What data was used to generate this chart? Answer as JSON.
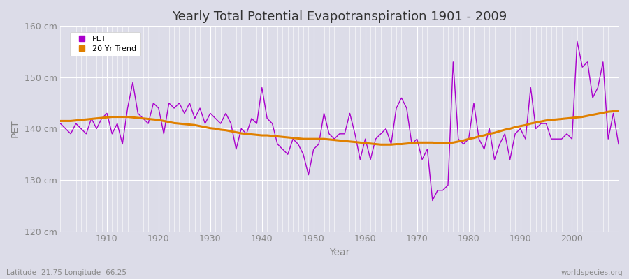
{
  "title": "Yearly Total Potential Evapotranspiration 1901 - 2009",
  "xlabel": "Year",
  "ylabel": "PET",
  "subtitle": "Latitude -21.75 Longitude -66.25",
  "watermark": "worldspecies.org",
  "ylim": [
    120,
    160
  ],
  "yticks": [
    120,
    130,
    140,
    150,
    160
  ],
  "ytick_labels": [
    "120 cm",
    "130 cm",
    "140 cm",
    "150 cm",
    "160 cm"
  ],
  "xlim": [
    1901,
    2009
  ],
  "xticks": [
    1910,
    1920,
    1930,
    1940,
    1950,
    1960,
    1970,
    1980,
    1990,
    2000
  ],
  "pet_color": "#AA00CC",
  "trend_color": "#E08000",
  "bg_color": "#DCDCE8",
  "fig_color": "#DCDCE8",
  "legend_pet": "PET",
  "legend_trend": "20 Yr Trend",
  "years": [
    1901,
    1902,
    1903,
    1904,
    1905,
    1906,
    1907,
    1908,
    1909,
    1910,
    1911,
    1912,
    1913,
    1914,
    1915,
    1916,
    1917,
    1918,
    1919,
    1920,
    1921,
    1922,
    1923,
    1924,
    1925,
    1926,
    1927,
    1928,
    1929,
    1930,
    1931,
    1932,
    1933,
    1934,
    1935,
    1936,
    1937,
    1938,
    1939,
    1940,
    1941,
    1942,
    1943,
    1944,
    1945,
    1946,
    1947,
    1948,
    1949,
    1950,
    1951,
    1952,
    1953,
    1954,
    1955,
    1956,
    1957,
    1958,
    1959,
    1960,
    1961,
    1962,
    1963,
    1964,
    1965,
    1966,
    1967,
    1968,
    1969,
    1970,
    1971,
    1972,
    1973,
    1974,
    1975,
    1976,
    1977,
    1978,
    1979,
    1980,
    1981,
    1982,
    1983,
    1984,
    1985,
    1986,
    1987,
    1988,
    1989,
    1990,
    1991,
    1992,
    1993,
    1994,
    1995,
    1996,
    1997,
    1998,
    1999,
    2000,
    2001,
    2002,
    2003,
    2004,
    2005,
    2006,
    2007,
    2008,
    2009
  ],
  "pet_values": [
    141,
    140,
    139,
    141,
    140,
    139,
    142,
    140,
    142,
    143,
    139,
    141,
    137,
    144,
    149,
    143,
    142,
    141,
    145,
    144,
    139,
    145,
    144,
    145,
    143,
    145,
    142,
    144,
    141,
    143,
    142,
    141,
    143,
    141,
    136,
    140,
    139,
    142,
    141,
    148,
    142,
    141,
    137,
    136,
    135,
    138,
    137,
    135,
    131,
    136,
    137,
    143,
    139,
    138,
    139,
    139,
    143,
    139,
    134,
    138,
    134,
    138,
    139,
    140,
    137,
    144,
    146,
    144,
    137,
    138,
    134,
    136,
    126,
    128,
    128,
    129,
    153,
    138,
    137,
    138,
    145,
    138,
    136,
    140,
    134,
    137,
    139,
    134,
    139,
    140,
    138,
    148,
    140,
    141,
    141,
    138,
    138,
    138,
    139,
    138,
    157,
    152,
    153,
    146,
    148,
    153,
    138,
    143,
    137
  ],
  "trend_values": [
    141.5,
    141.5,
    141.5,
    141.6,
    141.7,
    141.8,
    141.9,
    142.0,
    142.1,
    142.2,
    142.3,
    142.3,
    142.3,
    142.3,
    142.2,
    142.1,
    142.0,
    141.9,
    141.8,
    141.7,
    141.5,
    141.3,
    141.1,
    141.0,
    140.9,
    140.8,
    140.7,
    140.5,
    140.3,
    140.1,
    140.0,
    139.8,
    139.7,
    139.5,
    139.3,
    139.1,
    139.0,
    138.9,
    138.8,
    138.7,
    138.7,
    138.6,
    138.5,
    138.4,
    138.3,
    138.2,
    138.1,
    138.0,
    138.0,
    138.0,
    138.0,
    138.0,
    137.9,
    137.8,
    137.7,
    137.6,
    137.5,
    137.4,
    137.3,
    137.2,
    137.1,
    137.0,
    136.9,
    136.9,
    136.9,
    137.0,
    137.0,
    137.1,
    137.2,
    137.3,
    137.3,
    137.3,
    137.3,
    137.2,
    137.2,
    137.2,
    137.3,
    137.5,
    137.7,
    138.0,
    138.2,
    138.5,
    138.7,
    139.0,
    139.2,
    139.5,
    139.8,
    140.0,
    140.3,
    140.5,
    140.7,
    141.0,
    141.2,
    141.4,
    141.6,
    141.7,
    141.8,
    141.9,
    142.0,
    142.1,
    142.2,
    142.3,
    142.5,
    142.7,
    142.9,
    143.1,
    143.3,
    143.4,
    143.5
  ]
}
